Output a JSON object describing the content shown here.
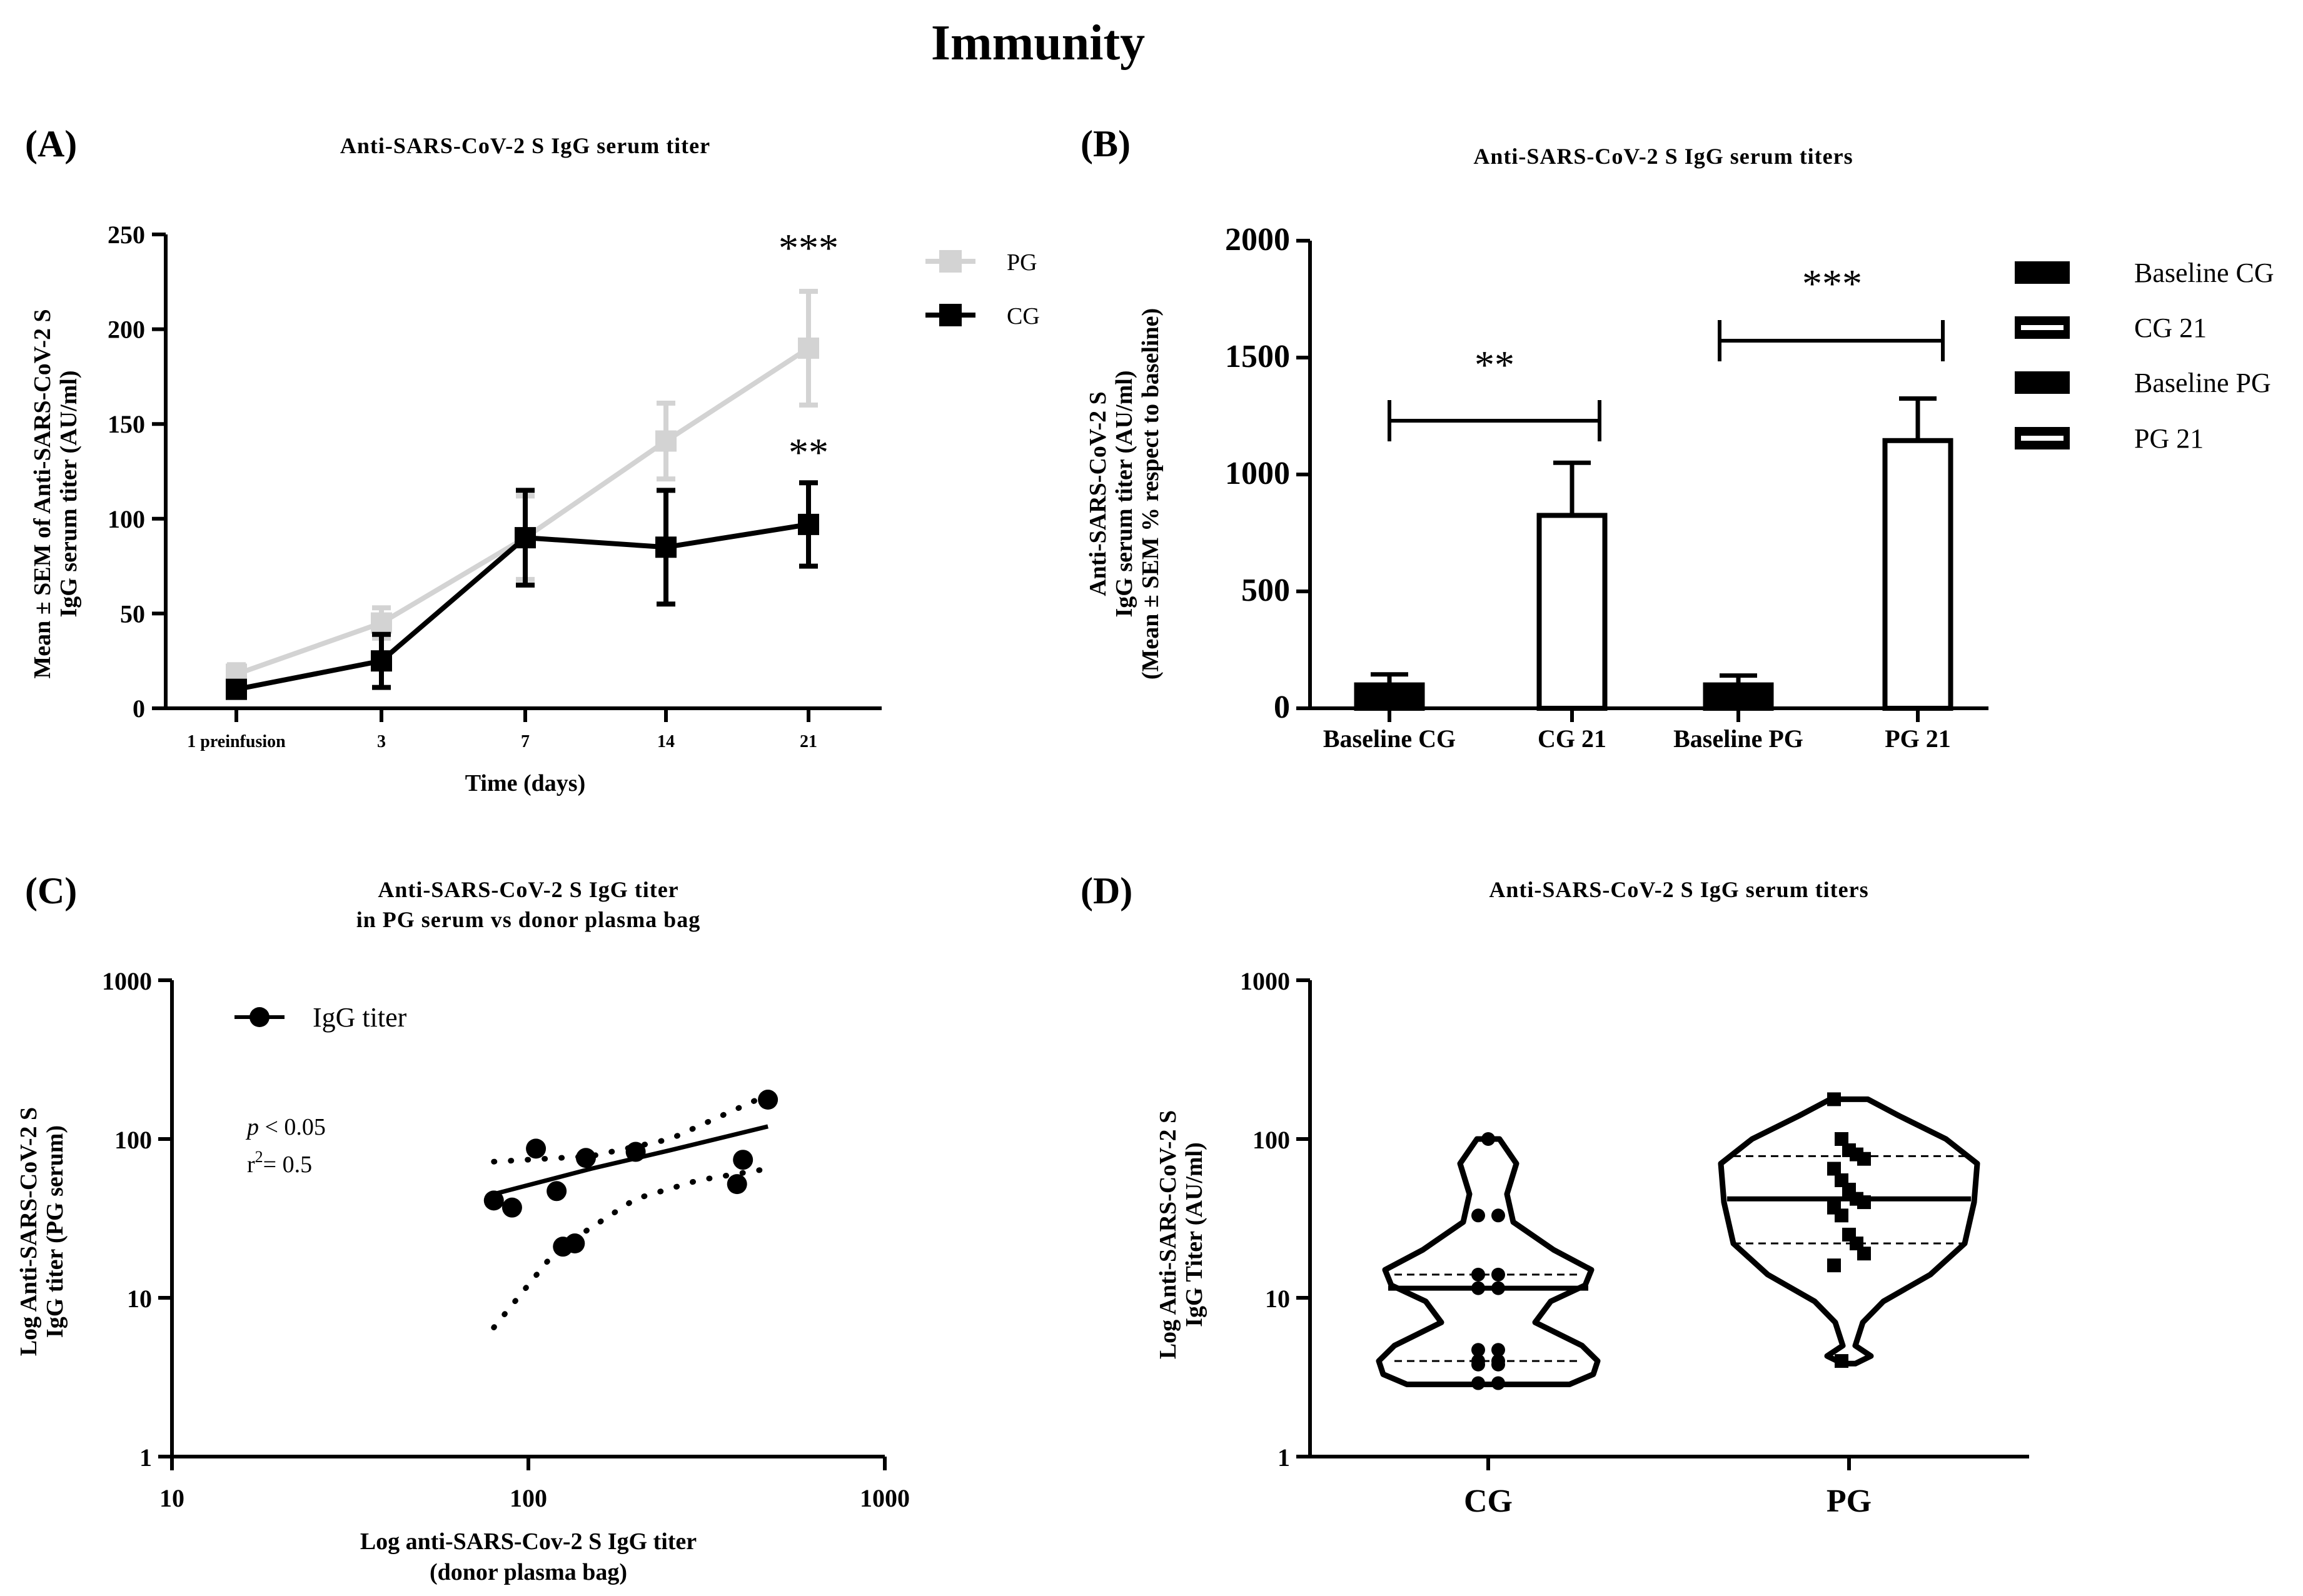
{
  "figure": {
    "title": "Immunity"
  },
  "panels": {
    "A": {
      "label": "(A)",
      "title": "Anti-SARS-CoV-2 S IgG serum titer",
      "ylabel_line1": "Mean ± SEM  of Anti-SARS-CoV-2 S",
      "ylabel_line2": "IgG serum titer (AU/ml)",
      "xlabel": "Time (days)",
      "legend": [
        "PG",
        "CG"
      ],
      "sig_PG": "***",
      "sig_CG": "**"
    },
    "B": {
      "label": "(B)",
      "title": "Anti-SARS-CoV-2 S IgG serum titers",
      "ylabel_line1": "Anti-SARS-CoV-2 S",
      "ylabel_line2": "IgG serum titer (AU/ml)",
      "ylabel_line3": "(Mean ± SEM % respect to baseline)",
      "legend": [
        "Baseline CG",
        "CG 21",
        "Baseline PG",
        "PG 21"
      ],
      "sig_CG": "**",
      "sig_PG": "***"
    },
    "C": {
      "label": "(C)",
      "title_line1": "Anti-SARS-CoV-2 S IgG titer",
      "title_line2": "in PG serum vs donor plasma bag",
      "ylabel_line1": "Log Anti-SARS-CoV-2 S",
      "ylabel_line2": "IgG titer (PG serum)",
      "xlabel_line1": "Log anti-SARS-Cov-2 S IgG titer",
      "xlabel_line2": "(donor plasma bag)",
      "legend": "IgG titer",
      "p_text": "p",
      "p_rest": " < 0.05",
      "r2_text": "r",
      "r2_sup": "2",
      "r2_rest": "= 0.5"
    },
    "D": {
      "label": "(D)",
      "title": "Anti-SARS-CoV-2 S IgG serum titers",
      "ylabel_line1": "Log Anti-SARS-CoV-2 S",
      "ylabel_line2": "IgG Titer (AU/ml)"
    }
  },
  "chart_data": [
    {
      "panel": "A",
      "type": "line",
      "title": "Anti-SARS-CoV-2 S IgG serum titer",
      "xlabel": "Time (days)",
      "ylabel": "Mean ± SEM  of Anti-SARS-CoV-2 S IgG serum titer (AU/ml)",
      "categories": [
        "1 preinfusion",
        "3",
        "7",
        "14",
        "21"
      ],
      "ylim": [
        0,
        250
      ],
      "yticks": [
        0,
        50,
        100,
        150,
        200,
        250
      ],
      "series": [
        {
          "name": "PG",
          "color": "#d3d3d3",
          "values": [
            18,
            45,
            90,
            141,
            190
          ],
          "err": [
            5,
            8,
            22,
            20,
            30
          ]
        },
        {
          "name": "CG",
          "color": "#000000",
          "values": [
            10,
            25,
            90,
            85,
            97
          ],
          "err": [
            4,
            14,
            25,
            30,
            22
          ]
        }
      ]
    },
    {
      "panel": "B",
      "type": "bar",
      "title": "Anti-SARS-CoV-2 S IgG serum titers",
      "categories": [
        "Baseline CG",
        "CG 21",
        "Baseline PG",
        "PG 21"
      ],
      "values": [
        100,
        825,
        100,
        1145
      ],
      "err": [
        45,
        225,
        40,
        180
      ],
      "fill": [
        "#000000",
        "#ffffff",
        "#000000",
        "#ffffff"
      ],
      "ylim": [
        0,
        2000
      ],
      "yticks": [
        0,
        500,
        1000,
        1500,
        2000
      ]
    },
    {
      "panel": "C",
      "type": "scatter",
      "xscale": "log",
      "yscale": "log",
      "xlim": [
        10,
        1000
      ],
      "ylim": [
        1,
        1000
      ],
      "xticks": [
        10,
        100,
        1000
      ],
      "yticks": [
        1,
        10,
        100,
        1000
      ],
      "points": [
        {
          "x": 80,
          "y": 41
        },
        {
          "x": 90,
          "y": 37
        },
        {
          "x": 105,
          "y": 87
        },
        {
          "x": 120,
          "y": 47
        },
        {
          "x": 125,
          "y": 21
        },
        {
          "x": 135,
          "y": 22
        },
        {
          "x": 145,
          "y": 76
        },
        {
          "x": 200,
          "y": 83
        },
        {
          "x": 385,
          "y": 52
        },
        {
          "x": 400,
          "y": 74
        },
        {
          "x": 470,
          "y": 177
        }
      ],
      "fit": [
        [
          80,
          45
        ],
        [
          150,
          65
        ],
        [
          250,
          85
        ],
        [
          470,
          120
        ]
      ],
      "ci_upper": [
        [
          80,
          72
        ],
        [
          150,
          78
        ],
        [
          250,
          100
        ],
        [
          470,
          190
        ]
      ],
      "ci_lower": [
        [
          80,
          6.5
        ],
        [
          120,
          20
        ],
        [
          200,
          42
        ],
        [
          300,
          55
        ],
        [
          470,
          65
        ]
      ]
    },
    {
      "panel": "D",
      "type": "violin",
      "yscale": "log",
      "ylim": [
        1,
        1000
      ],
      "yticks": [
        1,
        10,
        100,
        1000
      ],
      "categories": [
        "CG",
        "PG"
      ],
      "groups": [
        {
          "name": "CG",
          "median": 11.5,
          "q1": 4,
          "q3": 14,
          "points": [
            100,
            33,
            33,
            14,
            14,
            11.5,
            11.5,
            4.7,
            4.7,
            4,
            4,
            3.8,
            3.8,
            2.9,
            2.9
          ]
        },
        {
          "name": "PG",
          "median": 42,
          "q1": 22,
          "q3": 78,
          "points": [
            178,
            100,
            85,
            80,
            75,
            65,
            55,
            48,
            42,
            40,
            37,
            33,
            25,
            22,
            19,
            16,
            4
          ]
        }
      ]
    }
  ]
}
